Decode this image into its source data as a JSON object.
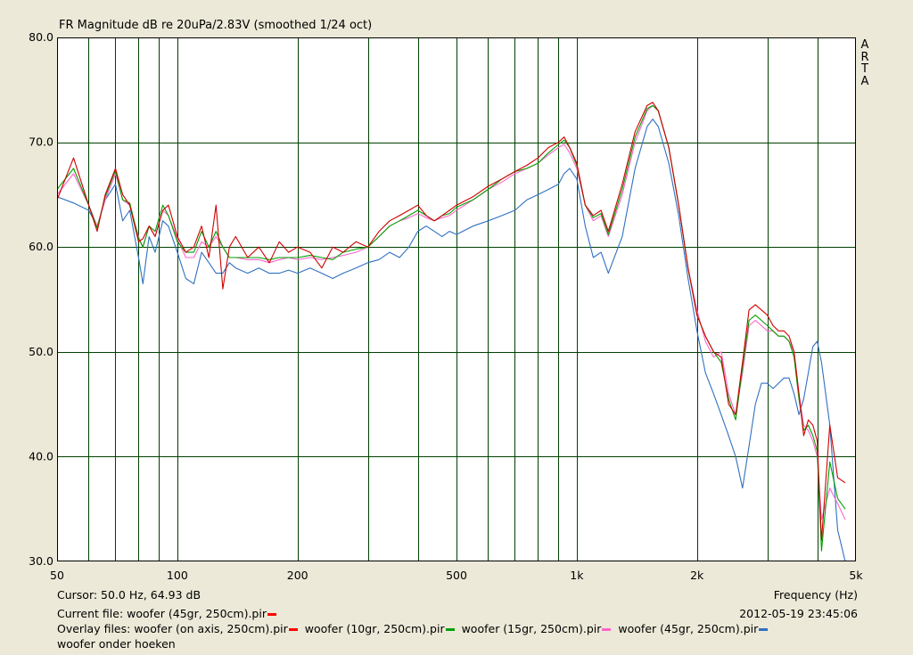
{
  "title": "FR Magnitude dB re 20uPa/2.83V (smoothed 1/24 oct)",
  "brand_letters": [
    "A",
    "R",
    "T",
    "A"
  ],
  "cursor_text": "Cursor: 50.0 Hz, 64.93 dB",
  "frequency_label": "Frequency (Hz)",
  "current_file_label": "Current file: woofer (45gr, 250cm).pir",
  "current_file_color": "#FF0000",
  "timestamp": "2012-05-19  23:45:06",
  "overlay_label": "Overlay files:",
  "overlays": [
    {
      "name": "woofer (on axis, 250cm).pir",
      "color": "#FF0000"
    },
    {
      "name": "woofer (10gr, 250cm).pir",
      "color": "#00A000"
    },
    {
      "name": "woofer (15gr, 250cm).pir",
      "color": "#FF66CC"
    },
    {
      "name": "woofer (45gr, 250cm).pir",
      "color": "#3070C0"
    }
  ],
  "overlay_extra": "woofer onder hoeken",
  "chart_data": {
    "type": "line",
    "x_scale": "log",
    "xlim": [
      50,
      5000
    ],
    "ylim": [
      30,
      80
    ],
    "grid": true,
    "y_ticks": [
      30,
      40,
      50,
      60,
      70,
      80
    ],
    "y_tick_labels": [
      "30.0",
      "40.0",
      "50.0",
      "60.0",
      "70.0",
      "80.0"
    ],
    "x_ticks": [
      50,
      100,
      200,
      500,
      1000,
      2000,
      5000
    ],
    "x_tick_labels": [
      "50",
      "100",
      "200",
      "500",
      "1k",
      "2k",
      "5k"
    ],
    "x_minor_grid": [
      60,
      70,
      80,
      90,
      300,
      400,
      600,
      700,
      800,
      900,
      3000,
      4000
    ],
    "series": [
      {
        "color": "#3070C0",
        "x": [
          50,
          55,
          60,
          63,
          66,
          70,
          73,
          76,
          80,
          82,
          85,
          88,
          92,
          95,
          100,
          105,
          110,
          115,
          120,
          125,
          130,
          135,
          140,
          150,
          160,
          170,
          180,
          190,
          200,
          215,
          230,
          245,
          260,
          280,
          300,
          320,
          340,
          360,
          380,
          400,
          420,
          440,
          460,
          480,
          500,
          550,
          600,
          650,
          700,
          750,
          800,
          850,
          900,
          930,
          960,
          1000,
          1050,
          1100,
          1150,
          1200,
          1300,
          1400,
          1500,
          1550,
          1600,
          1700,
          1800,
          1900,
          2000,
          2100,
          2200,
          2300,
          2400,
          2500,
          2600,
          2700,
          2800,
          2900,
          3000,
          3100,
          3200,
          3300,
          3400,
          3500,
          3600,
          3700,
          3800,
          3900,
          4000,
          4100,
          4300,
          4500,
          4700
        ],
        "y": [
          64.8,
          64.2,
          63.5,
          62.0,
          64.5,
          66.0,
          62.5,
          63.5,
          59.0,
          56.5,
          61.0,
          59.5,
          62.5,
          62.0,
          59.5,
          57.0,
          56.5,
          59.5,
          58.5,
          57.5,
          57.5,
          58.5,
          58.0,
          57.5,
          58.0,
          57.5,
          57.5,
          57.8,
          57.5,
          58.0,
          57.5,
          57.0,
          57.5,
          58.0,
          58.5,
          58.8,
          59.5,
          59.0,
          60.0,
          61.5,
          62.0,
          61.5,
          61.0,
          61.5,
          61.2,
          62.0,
          62.5,
          63.0,
          63.5,
          64.5,
          65.0,
          65.5,
          66.0,
          67.0,
          67.5,
          66.5,
          62.0,
          59.0,
          59.5,
          57.5,
          61.0,
          67.5,
          71.5,
          72.2,
          71.5,
          68.0,
          63.0,
          57.0,
          52.0,
          48.0,
          46.0,
          44.0,
          42.0,
          40.0,
          37.0,
          41.0,
          45.0,
          47.0,
          47.0,
          46.5,
          47.0,
          47.5,
          47.5,
          46.0,
          44.0,
          45.5,
          48.0,
          50.5,
          51.0,
          49.0,
          43.0,
          33.0,
          30.0
        ]
      },
      {
        "color": "#FF66CC",
        "x": [
          50,
          55,
          60,
          63,
          66,
          70,
          73,
          76,
          80,
          82,
          85,
          88,
          92,
          95,
          100,
          105,
          110,
          115,
          120,
          125,
          130,
          135,
          140,
          150,
          160,
          170,
          180,
          190,
          200,
          215,
          230,
          245,
          260,
          280,
          300,
          320,
          340,
          360,
          380,
          400,
          420,
          440,
          460,
          480,
          500,
          550,
          600,
          650,
          700,
          750,
          800,
          850,
          900,
          930,
          960,
          1000,
          1050,
          1100,
          1150,
          1200,
          1300,
          1400,
          1500,
          1550,
          1600,
          1700,
          1800,
          1900,
          2000,
          2100,
          2200,
          2300,
          2400,
          2500,
          2600,
          2700,
          2800,
          2900,
          3000,
          3100,
          3200,
          3300,
          3400,
          3500,
          3600,
          3700,
          3800,
          3900,
          4000,
          4100,
          4300,
          4500,
          4700
        ],
        "y": [
          65.0,
          67.0,
          64.0,
          62.0,
          64.5,
          67.0,
          64.5,
          64.0,
          61.0,
          60.0,
          62.0,
          61.0,
          63.5,
          63.0,
          60.8,
          59.0,
          59.0,
          60.5,
          60.0,
          61.0,
          60.0,
          59.0,
          59.0,
          58.8,
          58.8,
          58.5,
          58.8,
          59.0,
          58.8,
          59.0,
          58.8,
          59.0,
          59.2,
          59.5,
          60.0,
          61.0,
          62.0,
          62.5,
          62.8,
          63.2,
          62.8,
          62.5,
          62.8,
          63.0,
          63.5,
          64.5,
          65.5,
          66.2,
          67.0,
          67.5,
          68.0,
          68.8,
          69.5,
          69.8,
          69.0,
          67.5,
          64.0,
          62.5,
          63.0,
          61.0,
          65.0,
          70.0,
          73.0,
          73.5,
          73.0,
          69.5,
          64.0,
          58.0,
          54.0,
          51.0,
          49.5,
          50.0,
          46.0,
          44.0,
          48.0,
          52.5,
          53.0,
          52.5,
          52.0,
          52.0,
          51.5,
          51.5,
          51.0,
          50.0,
          46.0,
          43.0,
          42.5,
          41.5,
          40.0,
          34.0,
          37.0,
          35.5,
          34.0
        ]
      },
      {
        "color": "#00A000",
        "x": [
          50,
          55,
          60,
          63,
          66,
          70,
          73,
          76,
          80,
          82,
          85,
          88,
          92,
          95,
          100,
          105,
          110,
          115,
          120,
          125,
          130,
          135,
          140,
          150,
          160,
          170,
          180,
          190,
          200,
          215,
          230,
          245,
          260,
          280,
          300,
          320,
          340,
          360,
          380,
          400,
          420,
          440,
          460,
          480,
          500,
          550,
          600,
          650,
          700,
          750,
          800,
          850,
          900,
          930,
          960,
          1000,
          1050,
          1100,
          1150,
          1200,
          1300,
          1400,
          1500,
          1550,
          1600,
          1700,
          1800,
          1900,
          2000,
          2100,
          2200,
          2300,
          2400,
          2500,
          2600,
          2700,
          2800,
          2900,
          3000,
          3100,
          3200,
          3300,
          3400,
          3500,
          3600,
          3700,
          3800,
          3900,
          4000,
          4100,
          4300,
          4500,
          4700
        ],
        "y": [
          65.5,
          67.5,
          64.0,
          61.8,
          64.8,
          67.3,
          64.5,
          64.2,
          60.8,
          60.0,
          62.0,
          61.5,
          64.0,
          63.0,
          60.5,
          59.5,
          59.5,
          61.5,
          60.0,
          61.5,
          60.0,
          59.0,
          59.0,
          59.0,
          59.0,
          58.8,
          59.0,
          59.0,
          59.0,
          59.2,
          59.0,
          58.8,
          59.5,
          59.8,
          60.0,
          61.0,
          62.0,
          62.5,
          63.0,
          63.5,
          63.0,
          62.5,
          63.0,
          63.2,
          63.8,
          64.5,
          65.5,
          66.5,
          67.2,
          67.5,
          68.0,
          69.0,
          69.8,
          70.2,
          69.5,
          67.8,
          64.0,
          62.8,
          63.2,
          61.2,
          65.5,
          70.5,
          73.2,
          73.5,
          73.0,
          69.5,
          64.0,
          58.0,
          53.5,
          51.5,
          50.0,
          49.0,
          45.5,
          43.5,
          48.5,
          53.0,
          53.5,
          53.0,
          52.5,
          52.0,
          51.5,
          51.5,
          51.0,
          49.5,
          45.5,
          42.5,
          43.0,
          42.0,
          40.5,
          31.0,
          39.5,
          36.0,
          35.0
        ]
      },
      {
        "color": "#D00000",
        "x": [
          50,
          55,
          60,
          63,
          66,
          70,
          73,
          76,
          80,
          82,
          85,
          88,
          92,
          95,
          100,
          105,
          110,
          115,
          120,
          125,
          130,
          135,
          140,
          150,
          160,
          170,
          180,
          190,
          200,
          215,
          230,
          245,
          260,
          280,
          300,
          320,
          340,
          360,
          380,
          400,
          420,
          440,
          460,
          480,
          500,
          550,
          600,
          650,
          700,
          750,
          800,
          850,
          900,
          930,
          960,
          1000,
          1050,
          1100,
          1150,
          1200,
          1300,
          1400,
          1500,
          1550,
          1600,
          1700,
          1800,
          1900,
          2000,
          2100,
          2200,
          2300,
          2400,
          2500,
          2600,
          2700,
          2800,
          2900,
          3000,
          3100,
          3200,
          3300,
          3400,
          3500,
          3600,
          3700,
          3800,
          3900,
          4000,
          4100,
          4300,
          4500,
          4700
        ],
        "y": [
          64.5,
          68.5,
          64.0,
          61.5,
          65.0,
          67.5,
          65.0,
          64.0,
          60.5,
          60.8,
          62.0,
          61.0,
          63.5,
          64.0,
          61.0,
          59.5,
          60.0,
          62.0,
          59.0,
          64.0,
          56.0,
          60.0,
          61.0,
          59.0,
          60.0,
          58.5,
          60.5,
          59.5,
          60.0,
          59.5,
          58.0,
          60.0,
          59.5,
          60.5,
          60.0,
          61.5,
          62.5,
          63.0,
          63.5,
          64.0,
          63.0,
          62.5,
          63.0,
          63.5,
          64.0,
          64.8,
          65.8,
          66.5,
          67.2,
          67.8,
          68.5,
          69.5,
          70.0,
          70.5,
          69.5,
          68.0,
          64.0,
          63.0,
          63.5,
          61.5,
          66.0,
          71.0,
          73.5,
          73.8,
          73.0,
          69.5,
          64.0,
          58.0,
          53.5,
          51.5,
          50.0,
          49.5,
          45.0,
          44.0,
          49.0,
          54.0,
          54.5,
          54.0,
          53.5,
          52.5,
          52.0,
          52.0,
          51.5,
          50.0,
          46.0,
          42.0,
          43.5,
          43.0,
          41.5,
          32.0,
          43.0,
          38.0,
          37.5
        ]
      }
    ]
  }
}
